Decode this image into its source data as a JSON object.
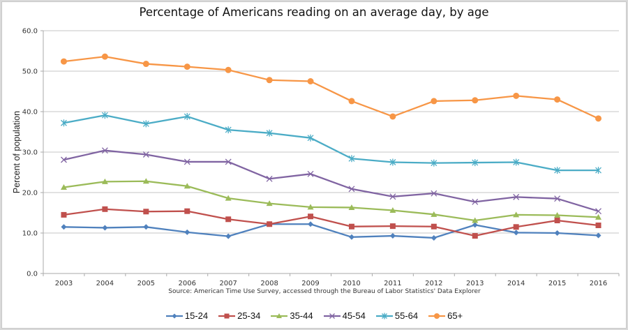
{
  "chart_data": {
    "type": "line",
    "title": "Percentage of Americans reading on an average day, by age",
    "xlabel": "",
    "ylabel": "Percent of population",
    "source": "Source: American Time Use Survey, accessed through the Bureau of Labor Statistics' Data Explorer",
    "ylim": [
      0,
      60
    ],
    "yticks": [
      "0.0",
      "10.0",
      "20.0",
      "30.0",
      "40.0",
      "50.0",
      "60.0"
    ],
    "ytick_values": [
      0,
      10,
      20,
      30,
      40,
      50,
      60
    ],
    "grid": true,
    "legend_position": "bottom",
    "x": [
      "2003",
      "2004",
      "2005",
      "2006",
      "2007",
      "2008",
      "2009",
      "2010",
      "2011",
      "2012",
      "2013",
      "2014",
      "2015",
      "2016"
    ],
    "series": [
      {
        "name": "15-24",
        "color": "#4f81bd",
        "marker": "diamond",
        "values": [
          11.5,
          11.3,
          11.5,
          10.2,
          9.2,
          12.2,
          12.2,
          9.0,
          9.3,
          8.8,
          12.0,
          10.1,
          10.0,
          9.4
        ]
      },
      {
        "name": "25-34",
        "color": "#c0504d",
        "marker": "square",
        "values": [
          14.5,
          15.9,
          15.3,
          15.4,
          13.4,
          12.2,
          14.1,
          11.6,
          11.7,
          11.6,
          9.3,
          11.5,
          13.1,
          11.9
        ]
      },
      {
        "name": "35-44",
        "color": "#9bbb59",
        "marker": "triangle",
        "values": [
          21.3,
          22.7,
          22.8,
          21.6,
          18.6,
          17.3,
          16.4,
          16.3,
          15.6,
          14.6,
          13.1,
          14.5,
          14.4,
          13.9
        ]
      },
      {
        "name": "45-54",
        "color": "#8064a2",
        "marker": "x",
        "values": [
          28.1,
          30.4,
          29.4,
          27.6,
          27.6,
          23.4,
          24.6,
          20.9,
          19.0,
          19.8,
          17.7,
          18.9,
          18.5,
          15.4
        ]
      },
      {
        "name": "55-64",
        "color": "#4bacc6",
        "marker": "star",
        "values": [
          37.2,
          39.1,
          37.0,
          38.8,
          35.5,
          34.7,
          33.5,
          28.4,
          27.5,
          27.3,
          27.4,
          27.5,
          25.5,
          25.5
        ]
      },
      {
        "name": "65+",
        "color": "#f79646",
        "marker": "circle",
        "values": [
          52.4,
          53.6,
          51.8,
          51.1,
          50.3,
          47.8,
          47.5,
          42.6,
          38.8,
          42.6,
          42.8,
          43.9,
          43.0,
          38.3
        ]
      }
    ]
  }
}
